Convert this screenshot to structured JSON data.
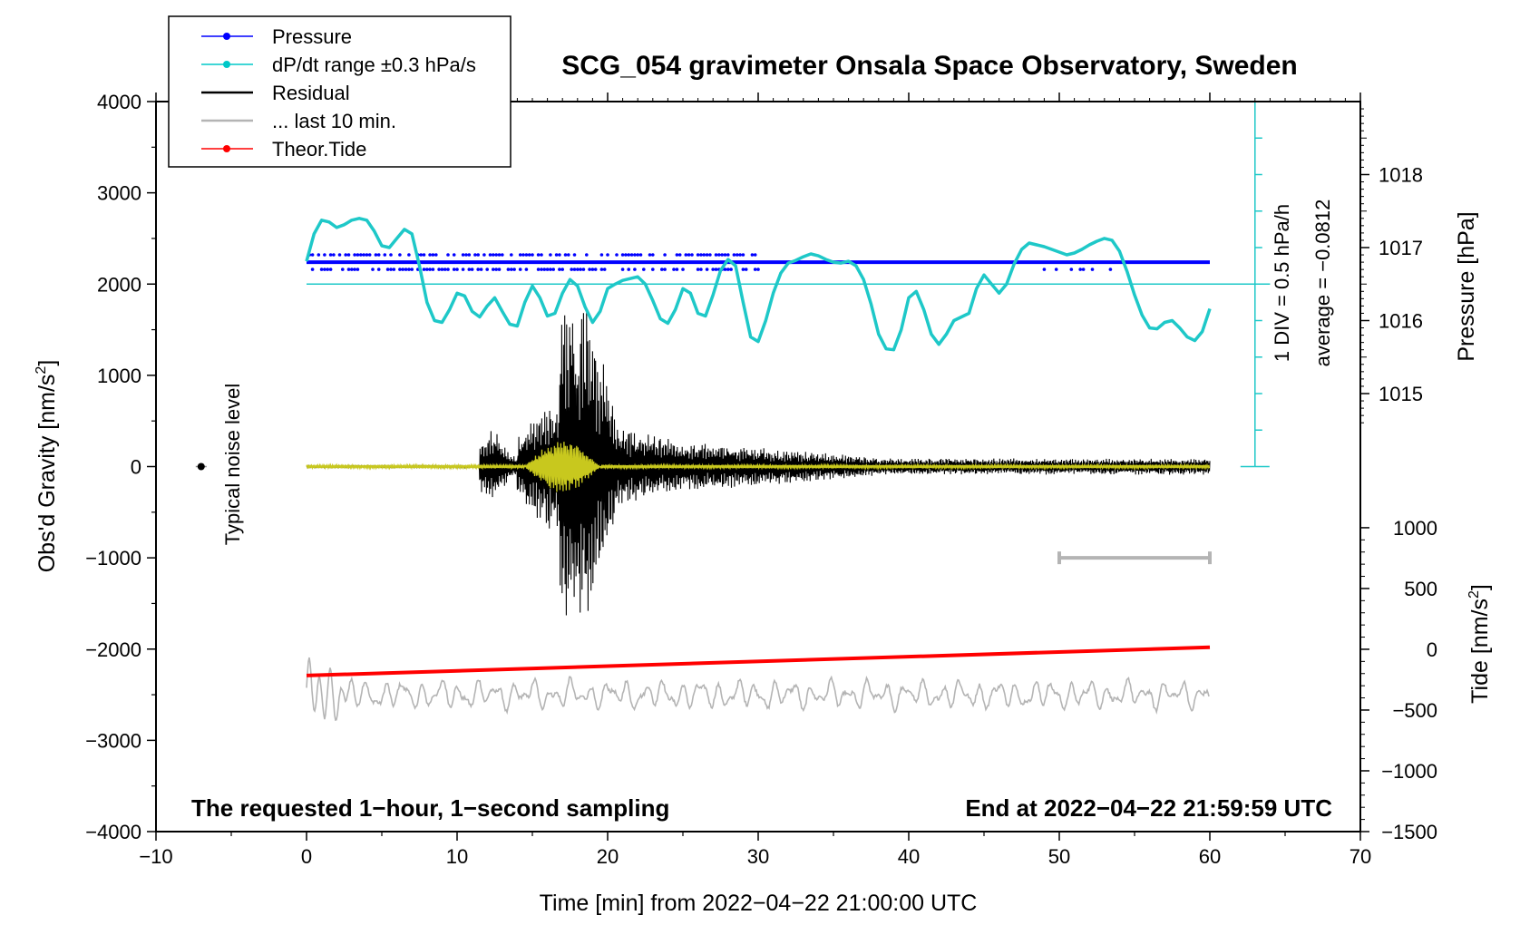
{
  "chart_data": {
    "type": "line",
    "title": "SCG_054 gravimeter Onsala Space Observatory, Sweden",
    "xlabel": "Time [min] from 2022−04−22 21:00:00 UTC",
    "ylabel_left": "Obs'd Gravity [nm/s",
    "ylabel_left_sup": "2",
    "ylabel_left_end": "]",
    "ylabel_pressure": "Pressure [hPa]",
    "ylabel_tide": "Tide [nm/s",
    "ylabel_tide_sup": "2",
    "ylabel_tide_end": "]",
    "xlim": [
      -10,
      70
    ],
    "ylim": [
      -4000,
      4000
    ],
    "x_ticks": [
      -10,
      0,
      10,
      20,
      30,
      40,
      50,
      60,
      70
    ],
    "x_tick_labels": [
      "−10",
      "0",
      "10",
      "20",
      "30",
      "40",
      "50",
      "60",
      "70"
    ],
    "y_ticks": [
      4000,
      3000,
      2000,
      1000,
      0,
      -1000,
      -2000,
      -3000,
      -4000
    ],
    "y_tick_labels": [
      "4000",
      "3000",
      "2000",
      "1000",
      "0",
      "−1000",
      "−2000",
      "−3000",
      "−4000"
    ],
    "pressure_axis": {
      "ticks": [
        1015,
        1016,
        1017,
        1018
      ],
      "tick_labels": [
        "1015",
        "1016",
        "1017",
        "1018"
      ],
      "gravity_equiv": [
        {
          "p": 1015,
          "g": 800
        },
        {
          "p": 1018,
          "g": 3200
        }
      ]
    },
    "tide_axis": {
      "ticks": [
        1000,
        500,
        0,
        -500,
        -1000,
        -1500
      ],
      "tick_labels": [
        "1000",
        "500",
        "0",
        "−500",
        "−1000",
        "−1500"
      ],
      "gravity_equiv": [
        {
          "t": 1000,
          "g": -670
        },
        {
          "t": -1500,
          "g": -4000
        }
      ]
    },
    "legend": {
      "position": "top-left",
      "entries": [
        {
          "label": "Pressure",
          "color": "#0000ff",
          "marker": true
        },
        {
          "label": "dP/dt range ±0.3 hPa/s",
          "color": "#00c8c8",
          "marker": true
        },
        {
          "label": "Residual",
          "color": "#000000",
          "marker": false
        },
        {
          "label": "... last 10 min.",
          "color": "#b4b4b4",
          "marker": false
        },
        {
          "label": "Theor.Tide",
          "color": "#ff0000",
          "marker": true
        }
      ]
    },
    "annotations": {
      "noise_label": "Typical noise level",
      "div_label": "1 DIV = 0.5 hPa/h",
      "average_label": "average = −0.0812",
      "bottom_left": "The requested 1−hour, 1−second sampling",
      "bottom_right": "End at 2022−04−22 21:59:59 UTC"
    },
    "series": [
      {
        "name": "dP/dt range ±0.3 hPa/s",
        "color": "#1ec8c8",
        "x": [
          0,
          0.5,
          1,
          1.5,
          2,
          2.5,
          3,
          3.5,
          4,
          4.5,
          5,
          5.5,
          6,
          6.5,
          7,
          7.5,
          8,
          8.5,
          9,
          9.5,
          10,
          10.5,
          11,
          11.5,
          12,
          12.5,
          13,
          13.5,
          14,
          14.5,
          15,
          15.5,
          16,
          16.5,
          17,
          17.5,
          18,
          18.5,
          19,
          19.5,
          20,
          20.5,
          21,
          21.5,
          22,
          22.5,
          23,
          23.5,
          24,
          24.5,
          25,
          25.5,
          26,
          26.5,
          27,
          27.5,
          28,
          28.5,
          29,
          29.5,
          30,
          30.5,
          31,
          31.5,
          32,
          32.5,
          33,
          33.5,
          34,
          34.5,
          35,
          35.5,
          36,
          36.5,
          37,
          37.5,
          38,
          38.5,
          39,
          39.5,
          40,
          40.5,
          41,
          41.5,
          42,
          42.5,
          43,
          43.5,
          44,
          44.5,
          45,
          45.5,
          46,
          46.5,
          47,
          47.5,
          48,
          48.5,
          49,
          49.5,
          50,
          50.5,
          51,
          51.5,
          52,
          52.5,
          53,
          53.5,
          54,
          54.5,
          55,
          55.5,
          56,
          56.5,
          57,
          57.5,
          58,
          58.5,
          59,
          59.5,
          60
        ],
        "values": [
          2250,
          2550,
          2700,
          2680,
          2620,
          2650,
          2700,
          2720,
          2700,
          2580,
          2420,
          2400,
          2500,
          2600,
          2550,
          2200,
          1800,
          1600,
          1580,
          1720,
          1900,
          1870,
          1700,
          1640,
          1760,
          1850,
          1700,
          1560,
          1540,
          1800,
          1980,
          1850,
          1650,
          1680,
          1900,
          2050,
          1980,
          1750,
          1580,
          1700,
          1950,
          2000,
          2040,
          2060,
          2080,
          2000,
          1820,
          1620,
          1570,
          1720,
          1950,
          1900,
          1680,
          1650,
          1880,
          2150,
          2270,
          2200,
          1800,
          1420,
          1370,
          1600,
          1900,
          2120,
          2230,
          2260,
          2300,
          2330,
          2310,
          2270,
          2240,
          2230,
          2250,
          2200,
          2050,
          1780,
          1450,
          1290,
          1280,
          1500,
          1850,
          1920,
          1720,
          1450,
          1340,
          1450,
          1600,
          1640,
          1680,
          1950,
          2100,
          2000,
          1900,
          2000,
          2220,
          2380,
          2450,
          2430,
          2410,
          2380,
          2350,
          2320,
          2340,
          2380,
          2430,
          2470,
          2500,
          2480,
          2360,
          2140,
          1880,
          1660,
          1520,
          1510,
          1580,
          1600,
          1520,
          1420,
          1380,
          1480,
          1730
        ]
      },
      {
        "name": "Pressure",
        "color": "#0000ff",
        "x": [
          0,
          60
        ],
        "values": [
          2240,
          2240
        ],
        "scatter_rows": [
          2320,
          2240,
          2160
        ]
      },
      {
        "name": "Theor.Tide",
        "color": "#ff0000",
        "x": [
          0,
          60
        ],
        "values": [
          -2290,
          -1980
        ]
      },
      {
        "name": "Residual",
        "color": "#000000",
        "x_range": [
          0,
          60
        ],
        "baseline": 0,
        "peak_min": [
          -1870,
          1900
        ],
        "event_start_min": 11.5,
        "event_peak_min": 17.8
      },
      {
        "name": "Residual (filtered)",
        "color": "#c8c81e",
        "x_range": [
          0,
          60
        ],
        "baseline": 0
      },
      {
        "name": "... last 10 min.",
        "color": "#b4b4b4",
        "x_range": [
          0,
          60
        ],
        "baseline": -2500
      }
    ],
    "noise_bar": {
      "x": -7,
      "y": 0
    },
    "scale_bar": {
      "x_start": 50,
      "x_end": 60,
      "y": -1000
    },
    "reference_line": {
      "y": 2000,
      "x_end": 63
    },
    "div_axis": {
      "x": 63,
      "y_top": 4000,
      "y_bottom": 0
    }
  }
}
